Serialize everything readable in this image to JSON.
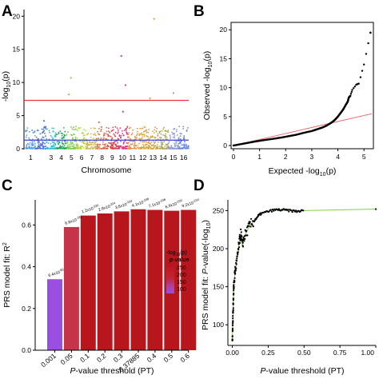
{
  "panels": {
    "A": "A",
    "B": "B",
    "C": "C",
    "D": "D"
  },
  "colors": {
    "sig_line": "#e8333a",
    "suggestive_line": "#3c3fd0",
    "qq_expected": "#f06060",
    "bar_dark": "#b8161d",
    "bar_mid": "#c6344a",
    "bar_low": "#9b4fe0",
    "prs_line": "#7fd23a",
    "chrom_colors": [
      "#5aa0e8",
      "#4a6fd6",
      "#2cc0c8",
      "#1fa65a",
      "#7ac94a",
      "#b6d44a",
      "#cdb84a",
      "#e06a4a",
      "#e0443d",
      "#d83a7a",
      "#e88a3a",
      "#e0a23a",
      "#d0a040",
      "#b0a850",
      "#8a9ad8",
      "#6a8ae0"
    ]
  },
  "chart_data": [
    {
      "panel": "A",
      "type": "scatter",
      "subtype": "manhattan",
      "xlabel": "Chromosome",
      "ylabel_prefix": "-log",
      "ylabel_sub": "10",
      "ylabel_suffix": "(p)",
      "x_ticks": [
        "1",
        "3",
        "4",
        "5",
        "6",
        "7",
        "8",
        "9",
        "10",
        "11",
        "12",
        "13",
        "14",
        "15",
        "16"
      ],
      "x_tick_chrom": [
        1,
        3,
        4,
        5,
        6,
        7,
        8,
        9,
        10,
        11,
        12,
        13,
        14,
        15,
        16
      ],
      "chromosomes": 16,
      "y_ticks": [
        0,
        5,
        10,
        15,
        20
      ],
      "ylim": [
        0,
        21
      ],
      "significance_line": 7.3,
      "suggestive_line": 1.3,
      "outliers": [
        {
          "chrom": 5,
          "pos": 0.45,
          "y": 10.7,
          "color": "#7ac94a"
        },
        {
          "chrom": 5,
          "pos": 0.25,
          "y": 8.2,
          "color": "#7ac94a"
        },
        {
          "chrom": 10,
          "pos": 0.4,
          "y": 14.0,
          "color": "#d83a7a"
        },
        {
          "chrom": 10,
          "pos": 0.8,
          "y": 9.6,
          "color": "#d83a7a"
        },
        {
          "chrom": 10,
          "pos": 0.55,
          "y": 5.6,
          "color": "#d83a7a"
        },
        {
          "chrom": 13,
          "pos": 0.6,
          "y": 19.6,
          "color": "#d0a040"
        },
        {
          "chrom": 13,
          "pos": 0.2,
          "y": 7.6,
          "color": "#d0a040"
        },
        {
          "chrom": 15,
          "pos": 0.5,
          "y": 8.4,
          "color": "#8a9ad8"
        },
        {
          "chrom": 2,
          "pos": 0.8,
          "y": 4.2,
          "color": "#4a6fd6"
        },
        {
          "chrom": 8,
          "pos": 0.2,
          "y": 4.0,
          "color": "#e06a4a"
        }
      ]
    },
    {
      "panel": "B",
      "type": "scatter",
      "subtype": "qq",
      "xlabel": "Expected -log",
      "xlabel_sub": "10",
      "xlabel_suffix": "(p)",
      "ylabel": "Observed -log",
      "ylabel_sub": "10",
      "ylabel_suffix": "(p)",
      "x_ticks": [
        0,
        1,
        2,
        3,
        4,
        5
      ],
      "y_ticks": [
        0,
        5,
        10,
        15,
        20
      ],
      "xlim": [
        0,
        5.3
      ],
      "ylim": [
        0,
        21
      ],
      "points": [
        [
          0.0,
          0.0
        ],
        [
          0.3,
          0.25
        ],
        [
          0.6,
          0.5
        ],
        [
          0.9,
          0.75
        ],
        [
          1.2,
          0.95
        ],
        [
          1.5,
          1.15
        ],
        [
          1.8,
          1.35
        ],
        [
          2.1,
          1.6
        ],
        [
          2.4,
          1.85
        ],
        [
          2.7,
          2.2
        ],
        [
          3.0,
          2.5
        ],
        [
          3.2,
          2.8
        ],
        [
          3.4,
          3.1
        ],
        [
          3.55,
          3.4
        ],
        [
          3.7,
          3.8
        ],
        [
          3.8,
          4.1
        ],
        [
          3.9,
          4.5
        ],
        [
          4.0,
          5.0
        ],
        [
          4.1,
          5.6
        ],
        [
          4.2,
          6.2
        ],
        [
          4.3,
          7.0
        ],
        [
          4.38,
          7.6
        ],
        [
          4.42,
          8.3
        ],
        [
          4.48,
          8.6
        ],
        [
          4.55,
          9.6
        ],
        [
          4.7,
          10.5
        ],
        [
          4.8,
          10.7
        ],
        [
          5.0,
          14.0
        ],
        [
          5.25,
          19.5
        ]
      ]
    },
    {
      "panel": "C",
      "type": "bar",
      "xlabel": "P-value threshold (PT)",
      "xlabel_italic": "P",
      "xlabel_rest": "-value threshold (PT)",
      "ylabel": "PRS model fit: R",
      "ylabel_sup": "2",
      "categories": [
        "0.001",
        "0.05",
        "0.1",
        "0.2",
        "0.3",
        "0.37885",
        "0.4",
        "0.5",
        "0.6"
      ],
      "values": [
        0.34,
        0.59,
        0.645,
        0.655,
        0.665,
        0.675,
        0.672,
        0.668,
        0.672
      ],
      "bar_colors": [
        "#9b4fe0",
        "#c6344a",
        "#b8161d",
        "#b8161d",
        "#b8161d",
        "#b8161d",
        "#b8161d",
        "#b8161d",
        "#b8161d"
      ],
      "labels": [
        "6.4x10",
        "6.8x10",
        "1.2x10",
        "2.8x10",
        "3.8x10",
        "4.1x10",
        "7.1x10",
        "6.9x10",
        "9.2x10"
      ],
      "label_exps": [
        "-83",
        "-182",
        "-226",
        "-224",
        "-233",
        "-238",
        "-238",
        "-233",
        "-233"
      ],
      "y_ticks": [
        0.0,
        0.2,
        0.4,
        0.6
      ],
      "ylim": [
        0,
        0.72
      ],
      "legend_title_1": "-log",
      "legend_title_sub": "10",
      "legend_title_suffix": "(p)",
      "legend_title_2": "p-value",
      "legend_ticks": [
        "250",
        "200",
        "150",
        "100"
      ]
    },
    {
      "panel": "D",
      "type": "line",
      "xlabel": "P-value threshold (PT)",
      "xlabel_italic": "P",
      "xlabel_rest": "-value threshold (PT)",
      "ylabel_1": "PRS model fit: ",
      "ylabel_italic": "P",
      "ylabel_2": "-value(-log",
      "ylabel_sub": "10",
      "ylabel_3": ")",
      "x_ticks": [
        "0.00",
        "0.25",
        "0.50",
        "0.75",
        "1.00"
      ],
      "x_tick_values": [
        0.0,
        0.25,
        0.5,
        0.75,
        1.0
      ],
      "y_ticks": [
        100,
        150,
        200,
        250
      ],
      "xlim": [
        -0.02,
        1.0
      ],
      "ylim": [
        75,
        262
      ],
      "points": [
        [
          0.0,
          78
        ],
        [
          0.002,
          95
        ],
        [
          0.004,
          110
        ],
        [
          0.006,
          125
        ],
        [
          0.008,
          140
        ],
        [
          0.01,
          150
        ],
        [
          0.015,
          162
        ],
        [
          0.02,
          172
        ],
        [
          0.03,
          182
        ],
        [
          0.04,
          196
        ],
        [
          0.05,
          210
        ],
        [
          0.06,
          220
        ],
        [
          0.07,
          204
        ],
        [
          0.08,
          214
        ],
        [
          0.1,
          222
        ],
        [
          0.12,
          230
        ],
        [
          0.15,
          236
        ],
        [
          0.18,
          243
        ],
        [
          0.2,
          246
        ],
        [
          0.25,
          249
        ],
        [
          0.3,
          251
        ],
        [
          0.35,
          251
        ],
        [
          0.4,
          250
        ],
        [
          0.45,
          249
        ],
        [
          0.5,
          250
        ],
        [
          1.0,
          252
        ]
      ]
    }
  ]
}
